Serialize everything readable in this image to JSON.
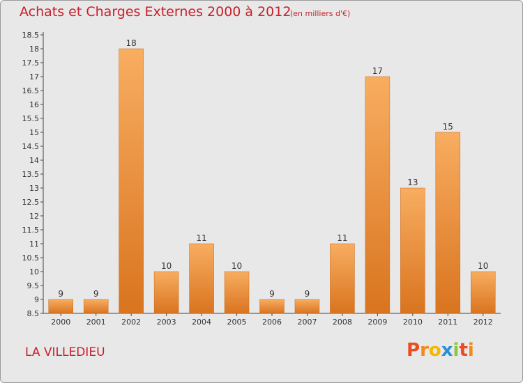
{
  "chart_data": {
    "type": "bar",
    "title": "Achats et Charges Externes 2000 à 2012",
    "subtitle": "(en milliers d'€)",
    "categories": [
      "2000",
      "2001",
      "2002",
      "2003",
      "2004",
      "2005",
      "2006",
      "2007",
      "2008",
      "2009",
      "2010",
      "2011",
      "2012"
    ],
    "values": [
      9,
      9,
      18,
      10,
      11,
      10,
      9,
      9,
      11,
      17,
      13,
      15,
      10
    ],
    "data_labels": [
      "9",
      "9",
      "18",
      "10",
      "11",
      "10",
      "9",
      "9",
      "11",
      "17",
      "13",
      "15",
      "10"
    ],
    "ylim": [
      8.5,
      18.5
    ],
    "yticks": [
      "8.5",
      "9",
      "9.5",
      "10",
      "10.5",
      "11",
      "11.5",
      "12",
      "12.5",
      "13",
      "13.5",
      "14",
      "14.5",
      "15",
      "15.5",
      "16",
      "16.5",
      "17",
      "17.5",
      "18",
      "18.5"
    ],
    "grid": false,
    "xlabel": "",
    "ylabel": "",
    "bar_color": "#f0903c",
    "bar_color_light": "#f7aa5c",
    "bar_color_dark": "#d87420"
  },
  "footer": {
    "commune": "LA VILLEDIEU",
    "logo_letters": [
      "P",
      "r",
      "o",
      "x",
      "i",
      "t",
      "i"
    ],
    "logo_colors": [
      "#e84c1f",
      "#f08a1c",
      "#f5b800",
      "#2a8fd6",
      "#8cc63f",
      "#e84c1f",
      "#f08a1c"
    ]
  },
  "colors": {
    "title": "#c8202a",
    "background": "#e8e8e8"
  }
}
